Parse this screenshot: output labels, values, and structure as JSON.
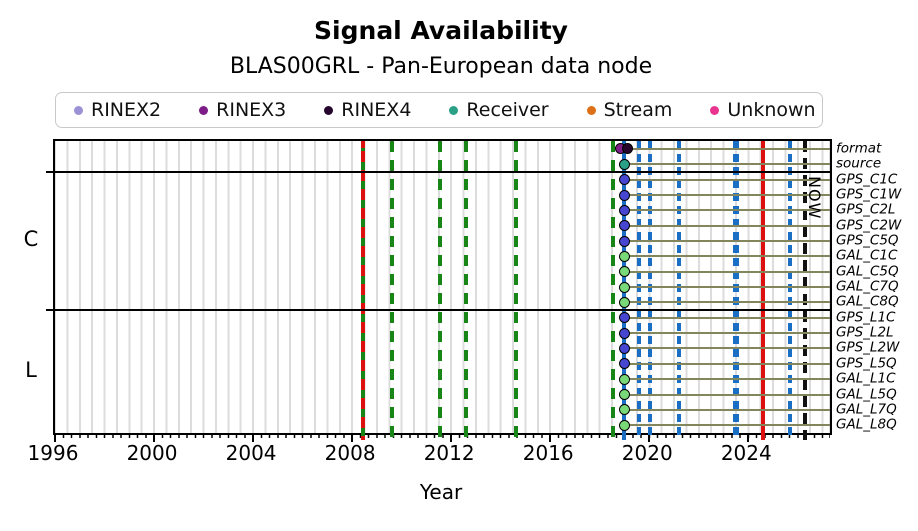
{
  "title": "Signal Availability",
  "subtitle": "BLAS00GRL - Pan-European data node",
  "legend": {
    "items": [
      {
        "label": "RINEX2",
        "color": "#9a92d4"
      },
      {
        "label": "RINEX3",
        "color": "#7e1d88"
      },
      {
        "label": "RINEX4",
        "color": "#26062c"
      },
      {
        "label": "Receiver",
        "color": "#2aa187"
      },
      {
        "label": "Stream",
        "color": "#dd6f16"
      },
      {
        "label": "Unknown",
        "color": "#e8348f"
      }
    ]
  },
  "chart_data": {
    "type": "scatter",
    "title": "Signal Availability",
    "subtitle": "BLAS00GRL - Pan-European data node",
    "xlabel": "Year",
    "now_label": "NOW",
    "xlim": [
      1996,
      2027.3
    ],
    "x_ticks": [
      1996,
      2000,
      2004,
      2008,
      2012,
      2016,
      2020,
      2024
    ],
    "grid": "minor vertical gridlines every 0.5 year",
    "colors": {
      "green": "#178617",
      "blue": "#1a6fc4",
      "red": "#de0f0f",
      "black": "#111111",
      "gps": "#4646d0",
      "gal": "#79d878",
      "receiver": "#2aa187",
      "rinex3": "#7e1d88",
      "rinex4": "#26062c",
      "rowline": "#83855c"
    },
    "sections": [
      {
        "label": "",
        "rows": [
          {
            "label": "format",
            "line_start": 2018.85,
            "markers": [
              {
                "x": 2018.85,
                "color": "rinex3",
                "name": "RINEX3"
              },
              {
                "x": 2019.12,
                "color": "rinex4",
                "name": "RINEX4"
              }
            ]
          },
          {
            "label": "source",
            "line_start": 2019.0,
            "markers": [
              {
                "x": 2019.0,
                "color": "receiver",
                "name": "Receiver"
              }
            ]
          }
        ]
      },
      {
        "label": "C",
        "rows": [
          {
            "label": "GPS_C1C",
            "line_start": 2019.0,
            "markers": [
              {
                "x": 2019.0,
                "color": "gps",
                "name": "GPS"
              }
            ]
          },
          {
            "label": "GPS_C1W",
            "line_start": 2019.0,
            "markers": [
              {
                "x": 2019.0,
                "color": "gps",
                "name": "GPS"
              }
            ]
          },
          {
            "label": "GPS_C2L",
            "line_start": 2019.0,
            "markers": [
              {
                "x": 2019.0,
                "color": "gps",
                "name": "GPS"
              }
            ]
          },
          {
            "label": "GPS_C2W",
            "line_start": 2019.0,
            "markers": [
              {
                "x": 2019.0,
                "color": "gps",
                "name": "GPS"
              }
            ]
          },
          {
            "label": "GPS_C5Q",
            "line_start": 2019.0,
            "markers": [
              {
                "x": 2019.0,
                "color": "gps",
                "name": "GPS"
              }
            ]
          },
          {
            "label": "GAL_C1C",
            "line_start": 2019.0,
            "markers": [
              {
                "x": 2019.0,
                "color": "gal",
                "name": "GAL"
              }
            ]
          },
          {
            "label": "GAL_C5Q",
            "line_start": 2019.0,
            "markers": [
              {
                "x": 2019.0,
                "color": "gal",
                "name": "GAL"
              }
            ]
          },
          {
            "label": "GAL_C7Q",
            "line_start": 2019.0,
            "markers": [
              {
                "x": 2019.0,
                "color": "gal",
                "name": "GAL"
              }
            ]
          },
          {
            "label": "GAL_C8Q",
            "line_start": 2019.0,
            "markers": [
              {
                "x": 2019.0,
                "color": "gal",
                "name": "GAL"
              }
            ]
          }
        ]
      },
      {
        "label": "L",
        "rows": [
          {
            "label": "GPS_L1C",
            "line_start": 2019.0,
            "markers": [
              {
                "x": 2019.0,
                "color": "gps",
                "name": "GPS"
              }
            ]
          },
          {
            "label": "GPS_L2L",
            "line_start": 2019.0,
            "markers": [
              {
                "x": 2019.0,
                "color": "gps",
                "name": "GPS"
              }
            ]
          },
          {
            "label": "GPS_L2W",
            "line_start": 2019.0,
            "markers": [
              {
                "x": 2019.0,
                "color": "gps",
                "name": "GPS"
              }
            ]
          },
          {
            "label": "GPS_L5Q",
            "line_start": 2019.0,
            "markers": [
              {
                "x": 2019.0,
                "color": "gps",
                "name": "GPS"
              }
            ]
          },
          {
            "label": "GAL_L1C",
            "line_start": 2019.0,
            "markers": [
              {
                "x": 2019.0,
                "color": "gal",
                "name": "GAL"
              }
            ]
          },
          {
            "label": "GAL_L5Q",
            "line_start": 2019.0,
            "markers": [
              {
                "x": 2019.0,
                "color": "gal",
                "name": "GAL"
              }
            ]
          },
          {
            "label": "GAL_L7Q",
            "line_start": 2019.0,
            "markers": [
              {
                "x": 2019.0,
                "color": "gal",
                "name": "GAL"
              }
            ]
          },
          {
            "label": "GAL_L8Q",
            "line_start": 2019.0,
            "markers": [
              {
                "x": 2019.0,
                "color": "gal",
                "name": "GAL"
              }
            ]
          }
        ]
      }
    ],
    "line_end": 2027.3,
    "vlines": [
      {
        "x": 2008.42,
        "color": "green",
        "style": "dashed"
      },
      {
        "x": 2008.42,
        "color": "red",
        "style": "dashed",
        "phase": 10
      },
      {
        "x": 2009.6,
        "color": "green",
        "style": "dashed"
      },
      {
        "x": 2011.55,
        "color": "green",
        "style": "dashed"
      },
      {
        "x": 2012.6,
        "color": "green",
        "style": "dashed"
      },
      {
        "x": 2014.6,
        "color": "green",
        "style": "dashed"
      },
      {
        "x": 2018.55,
        "color": "green",
        "style": "dashed"
      },
      {
        "x": 2018.97,
        "color": "blue",
        "style": "solid"
      },
      {
        "x": 2019.6,
        "color": "blue",
        "style": "dashed"
      },
      {
        "x": 2020.05,
        "color": "blue",
        "style": "dashed"
      },
      {
        "x": 2021.2,
        "color": "blue",
        "style": "dashed"
      },
      {
        "x": 2023.5,
        "color": "blue",
        "style": "dashed",
        "width": 6
      },
      {
        "x": 2024.6,
        "color": "red",
        "style": "solid",
        "name": "now-line"
      },
      {
        "x": 2025.7,
        "color": "blue",
        "style": "dashed"
      },
      {
        "x": 2026.3,
        "color": "black",
        "style": "dashed"
      }
    ]
  }
}
